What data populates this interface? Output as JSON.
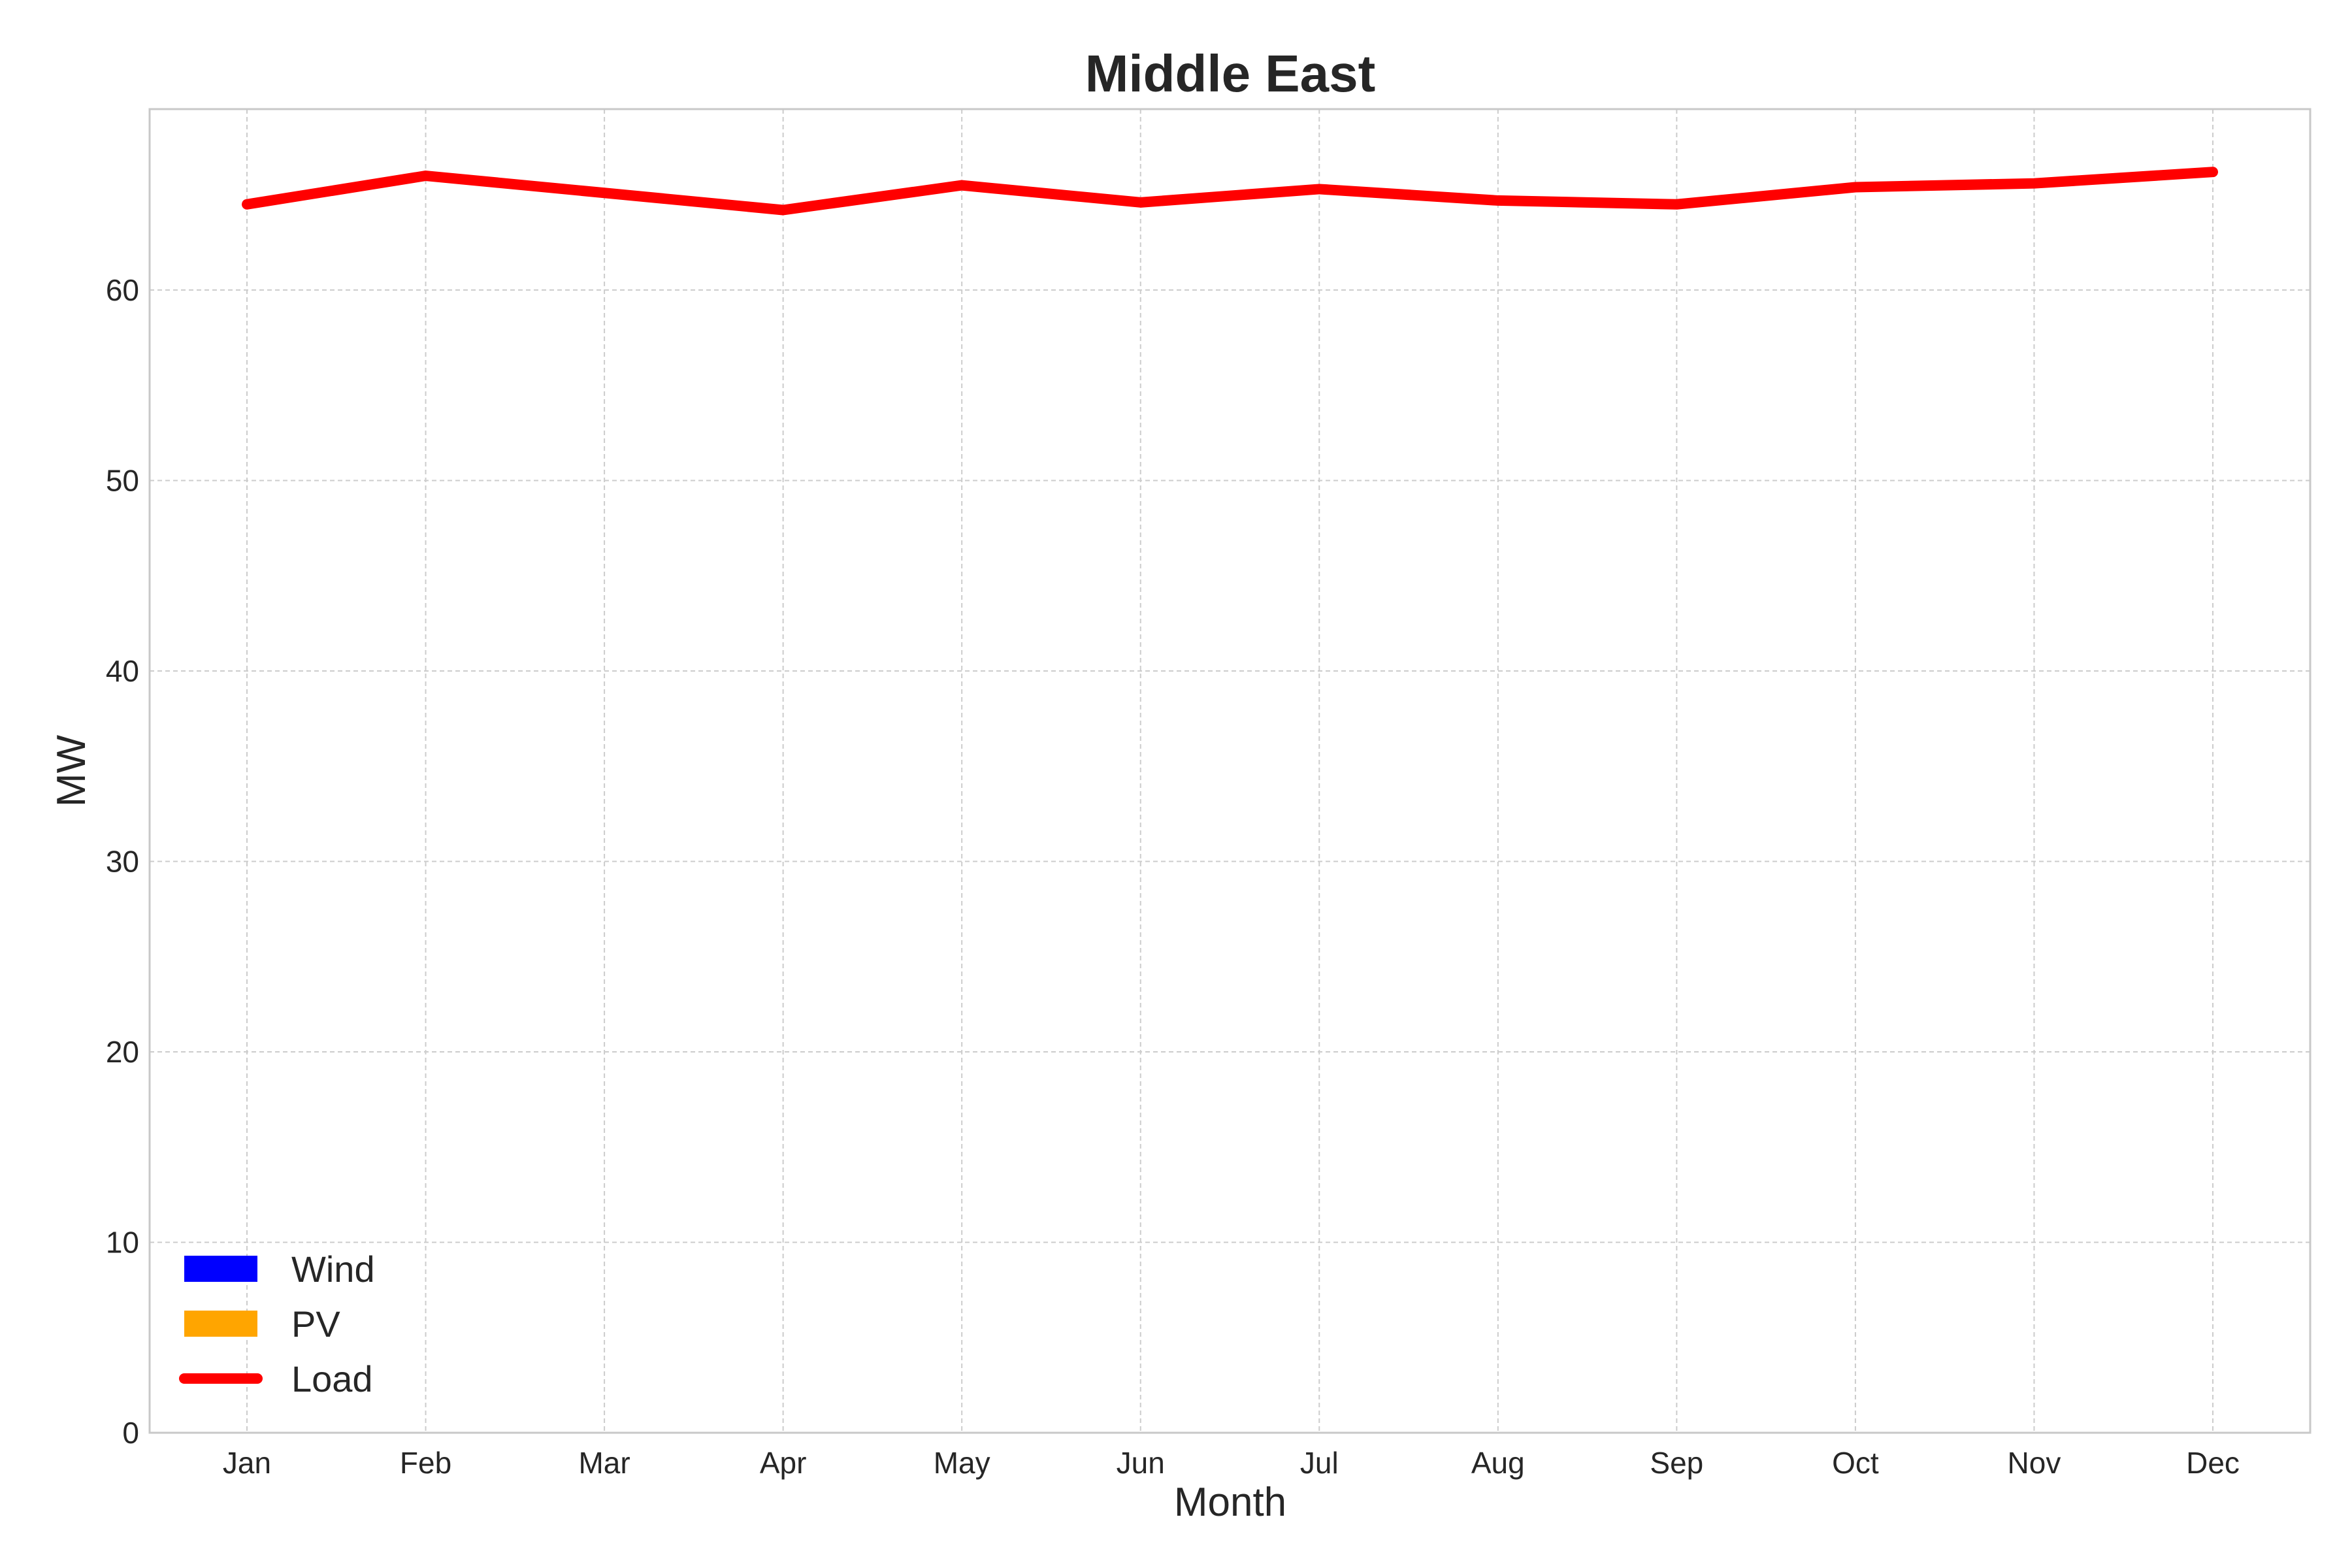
{
  "chart_data": {
    "type": "line",
    "title": "Middle East",
    "xlabel": "Month",
    "ylabel": "MW",
    "categories": [
      "Jan",
      "Feb",
      "Mar",
      "Apr",
      "May",
      "Jun",
      "Jul",
      "Aug",
      "Sep",
      "Oct",
      "Nov",
      "Dec"
    ],
    "ylim": [
      0,
      69.5
    ],
    "yticks": [
      0,
      10,
      20,
      30,
      40,
      50,
      60
    ],
    "grid": true,
    "legend_position": "bottom-left",
    "series": [
      {
        "name": "Wind",
        "kind": "stacked-area",
        "color": "#0000ff",
        "values": [
          0,
          0,
          0,
          0,
          0,
          0,
          0,
          0,
          0,
          0,
          0,
          0
        ]
      },
      {
        "name": "PV",
        "kind": "stacked-area",
        "color": "#ffa500",
        "values": [
          0,
          0,
          0,
          0,
          0,
          0,
          0,
          0,
          0,
          0,
          0,
          0
        ]
      },
      {
        "name": "Load",
        "kind": "line",
        "color": "#ff0000",
        "values": [
          64.5,
          66.0,
          65.1,
          64.2,
          65.5,
          64.6,
          65.3,
          64.7,
          64.5,
          65.4,
          65.6,
          66.2
        ]
      }
    ]
  }
}
